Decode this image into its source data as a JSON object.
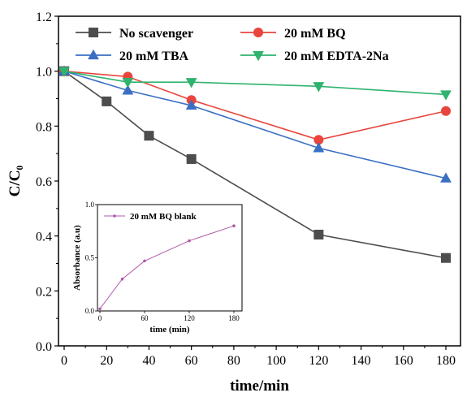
{
  "chart_data": [
    {
      "type": "line",
      "xlabel": "time/min",
      "ylabel": "C/C₀",
      "xlim": [
        0,
        180
      ],
      "ylim": [
        0.0,
        1.2
      ],
      "xticks": [
        "0",
        "20",
        "40",
        "60",
        "80",
        "100",
        "120",
        "140",
        "160",
        "180"
      ],
      "yticks": [
        "0.0",
        "0.2",
        "0.4",
        "0.6",
        "0.8",
        "1.0",
        "1.2"
      ],
      "legend_position": "top",
      "series": [
        {
          "name": "No scavenger",
          "color": "#4d4d4d",
          "marker": "square",
          "x": [
            0,
            20,
            40,
            60,
            120,
            180
          ],
          "y": [
            1.0,
            0.89,
            0.765,
            0.68,
            0.405,
            0.32
          ]
        },
        {
          "name": "20 mM BQ",
          "color": "#e8453c",
          "marker": "circle",
          "x": [
            0,
            30,
            60,
            120,
            180
          ],
          "y": [
            1.0,
            0.98,
            0.895,
            0.75,
            0.855
          ]
        },
        {
          "name": "20 mM TBA",
          "color": "#3a6fc4",
          "marker": "triangle-up",
          "x": [
            0,
            30,
            60,
            120,
            180
          ],
          "y": [
            1.0,
            0.93,
            0.875,
            0.72,
            0.61
          ]
        },
        {
          "name": "20 mM EDTA-2Na",
          "color": "#2fb36e",
          "marker": "triangle-down",
          "x": [
            0,
            30,
            60,
            120,
            180
          ],
          "y": [
            1.0,
            0.96,
            0.96,
            0.945,
            0.915
          ]
        }
      ]
    },
    {
      "type": "line",
      "placement": "inset lower-left",
      "xlabel": "time (min)",
      "ylabel": "Absorbance (a.u)",
      "xlim": [
        0,
        180
      ],
      "ylim": [
        0.0,
        1.0
      ],
      "xticks": [
        "0",
        "60",
        "120",
        "180"
      ],
      "yticks": [
        "0.0",
        "0.5",
        "1.0"
      ],
      "legend_position": "top-left",
      "series": [
        {
          "name": "20 mM BQ blank",
          "color": "#b05aa8",
          "marker": "dot",
          "x": [
            0,
            30,
            60,
            120,
            180
          ],
          "y": [
            0.02,
            0.3,
            0.47,
            0.66,
            0.8
          ]
        }
      ]
    }
  ]
}
